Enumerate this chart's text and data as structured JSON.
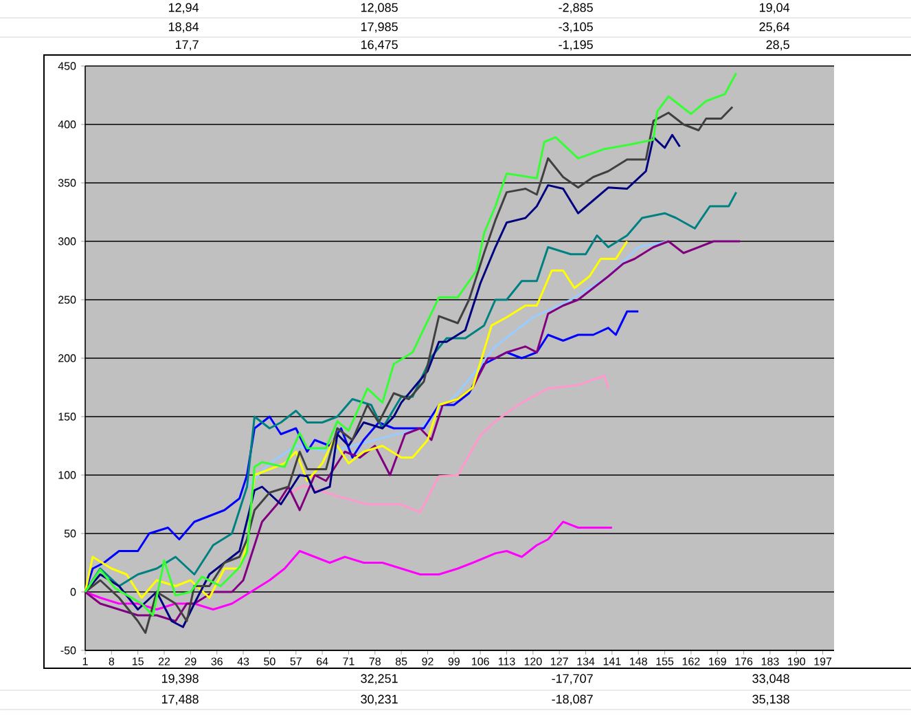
{
  "chart_data": {
    "type": "line",
    "xlim": [
      1,
      200
    ],
    "xticks": [
      1,
      8,
      15,
      22,
      29,
      36,
      43,
      50,
      57,
      64,
      71,
      78,
      85,
      92,
      99,
      106,
      113,
      120,
      127,
      134,
      141,
      148,
      155,
      162,
      169,
      176,
      183,
      190,
      197
    ],
    "ylim": [
      -50,
      450
    ],
    "yticks": [
      -50,
      0,
      50,
      100,
      150,
      200,
      250,
      300,
      350,
      400,
      450
    ],
    "grid": "y",
    "marker": "none",
    "line_style": "solid",
    "series": [
      {
        "color": "#99ccff",
        "x": [
          44,
          50,
          57,
          66,
          78,
          90,
          100,
          110,
          120,
          130,
          140,
          148,
          156
        ],
        "values": [
          90,
          110,
          125,
          120,
          130,
          140,
          170,
          210,
          235,
          250,
          270,
          295,
          300
        ]
      },
      {
        "color": "#ff00ff",
        "x": [
          1,
          5,
          10,
          15,
          20,
          25,
          30,
          35,
          40,
          45,
          50,
          54,
          58,
          62,
          66,
          70,
          75,
          80,
          85,
          90,
          95,
          100,
          104,
          110,
          113,
          117,
          121,
          124,
          128,
          132,
          136,
          141
        ],
        "values": [
          0,
          -5,
          -10,
          -10,
          -15,
          -10,
          -10,
          -15,
          -10,
          0,
          10,
          20,
          35,
          30,
          25,
          30,
          25,
          25,
          20,
          15,
          15,
          20,
          25,
          33,
          35,
          30,
          40,
          45,
          60,
          55,
          55,
          55
        ]
      },
      {
        "color": "#ff99cc",
        "x": [
          54,
          59,
          68,
          76,
          85,
          90,
          95,
          100,
          106,
          110,
          117,
          124,
          132,
          139,
          140
        ],
        "values": [
          82,
          91,
          82,
          75,
          75,
          68,
          99,
          100,
          134,
          146,
          162,
          174,
          177,
          185,
          174
        ]
      },
      {
        "color": "#0000ff",
        "x": [
          1,
          3,
          6,
          10,
          15,
          18,
          23,
          26,
          30,
          34,
          38,
          42,
          44,
          46,
          50,
          53,
          57,
          60,
          62,
          66,
          69,
          72,
          75,
          79,
          83,
          87,
          91,
          95,
          99,
          103,
          107,
          110,
          113,
          117,
          121,
          124,
          128,
          132,
          136,
          140,
          142,
          145,
          148
        ],
        "values": [
          0,
          20,
          25,
          35,
          35,
          50,
          55,
          45,
          60,
          65,
          70,
          80,
          100,
          140,
          150,
          135,
          140,
          120,
          130,
          125,
          140,
          115,
          130,
          145,
          140,
          140,
          140,
          160,
          160,
          170,
          195,
          200,
          205,
          200,
          205,
          220,
          215,
          220,
          220,
          226,
          220,
          240,
          240
        ]
      },
      {
        "color": "#800080",
        "x": [
          1,
          5,
          10,
          15,
          20,
          25,
          28,
          30,
          35,
          40,
          43,
          45,
          48,
          52,
          55,
          58,
          62,
          65,
          70,
          74,
          78,
          82,
          86,
          90,
          93,
          96,
          100,
          104,
          108,
          110,
          113,
          118,
          121,
          124,
          128,
          132,
          136,
          140,
          144,
          147,
          152,
          156,
          160,
          164,
          168,
          172,
          175
        ],
        "values": [
          0,
          -10,
          -15,
          -20,
          -20,
          -25,
          -10,
          -10,
          0,
          0,
          10,
          30,
          60,
          75,
          90,
          70,
          100,
          95,
          120,
          115,
          125,
          100,
          135,
          140,
          130,
          160,
          165,
          175,
          200,
          200,
          205,
          210,
          205,
          238,
          245,
          250,
          260,
          270,
          281,
          285,
          295,
          300,
          290,
          295,
          300,
          300,
          300
        ]
      },
      {
        "color": "#ffff00",
        "x": [
          1,
          3,
          8,
          12,
          16,
          20,
          25,
          29,
          34,
          38,
          42,
          44,
          46,
          50,
          54,
          57,
          60,
          64,
          67,
          71,
          75,
          80,
          85,
          88,
          92,
          95,
          100,
          104,
          109,
          113,
          118,
          121,
          125,
          128,
          131,
          135,
          138,
          142,
          145
        ],
        "values": [
          0,
          30,
          20,
          15,
          -5,
          10,
          5,
          10,
          -5,
          20,
          20,
          40,
          100,
          105,
          110,
          120,
          95,
          110,
          130,
          110,
          120,
          125,
          115,
          115,
          130,
          160,
          165,
          175,
          228,
          235,
          245,
          245,
          275,
          275,
          260,
          270,
          285,
          285,
          300
        ]
      },
      {
        "color": "#008080",
        "x": [
          1,
          5,
          10,
          15,
          20,
          25,
          30,
          35,
          40,
          44,
          46,
          50,
          53,
          57,
          60,
          64,
          68,
          72,
          77,
          80,
          85,
          88,
          93,
          97,
          102,
          107,
          110,
          113,
          117,
          121,
          124,
          130,
          134,
          137,
          140,
          145,
          149,
          155,
          158,
          163,
          167,
          172,
          174
        ],
        "values": [
          0,
          20,
          5,
          15,
          20,
          30,
          15,
          40,
          50,
          90,
          150,
          140,
          145,
          155,
          145,
          145,
          150,
          165,
          160,
          140,
          167,
          167,
          201,
          217,
          217,
          228,
          250,
          250,
          266,
          266,
          295,
          289,
          289,
          305,
          295,
          305,
          320,
          324,
          320,
          311,
          330,
          330,
          342
        ]
      },
      {
        "color": "#000080",
        "x": [
          1,
          5,
          10,
          15,
          20,
          24,
          27,
          30,
          34,
          38,
          42,
          46,
          48,
          53,
          58,
          60,
          62,
          66,
          68,
          71,
          75,
          80,
          83,
          85,
          92,
          95,
          97,
          102,
          106,
          110,
          113,
          118,
          121,
          124,
          128,
          132,
          136,
          140,
          145,
          150,
          152,
          155,
          157,
          159
        ],
        "values": [
          0,
          15,
          5,
          -15,
          0,
          -25,
          -30,
          -10,
          15,
          25,
          35,
          87,
          90,
          75,
          100,
          99,
          85,
          90,
          135,
          125,
          145,
          140,
          150,
          162,
          189,
          214,
          214,
          224,
          264,
          295,
          316,
          320,
          330,
          348,
          345,
          324,
          335,
          346,
          345,
          360,
          389,
          380,
          391,
          381
        ]
      },
      {
        "color": "#404040",
        "x": [
          1,
          5,
          10,
          15,
          17,
          20,
          25,
          28,
          30,
          34,
          38,
          42,
          44,
          46,
          50,
          55,
          58,
          60,
          65,
          68,
          72,
          76,
          79,
          83,
          87,
          91,
          95,
          100,
          103,
          107,
          110,
          113,
          118,
          121,
          124,
          128,
          132,
          136,
          140,
          145,
          150,
          152,
          156,
          160,
          164,
          166,
          170,
          173
        ],
        "values": [
          0,
          10,
          -5,
          -25,
          -35,
          0,
          -10,
          -25,
          5,
          5,
          25,
          30,
          45,
          70,
          85,
          90,
          120,
          105,
          105,
          140,
          130,
          160,
          145,
          170,
          165,
          180,
          236,
          230,
          250,
          290,
          318,
          342,
          345,
          340,
          371,
          355,
          346,
          355,
          360,
          370,
          370,
          403,
          410,
          400,
          395,
          405,
          405,
          415
        ]
      },
      {
        "color": "#33ff33",
        "x": [
          1,
          5,
          9,
          16,
          19,
          22,
          25,
          29,
          32,
          37,
          42,
          44,
          46,
          48,
          54,
          58,
          60,
          65,
          68,
          71,
          76,
          80,
          83,
          88,
          95,
          100,
          105,
          107,
          110,
          113,
          121,
          123,
          126,
          132,
          139,
          146,
          152,
          153,
          156,
          162,
          166,
          171,
          174
        ],
        "values": [
          0,
          19,
          3,
          -10,
          -20,
          27,
          -3,
          0,
          13,
          5,
          21,
          34,
          107,
          111,
          107,
          136,
          123,
          123,
          146,
          138,
          174,
          162,
          195,
          205,
          252,
          252,
          275,
          307,
          330,
          358,
          354,
          385,
          389,
          371,
          379,
          383,
          387,
          411,
          424,
          409,
          420,
          426,
          444
        ]
      }
    ],
    "annotations": [
      "12,94",
      "12,085",
      "-2,885",
      "19,04",
      "18,84",
      "17,985",
      "-3,105",
      "25,64",
      "17,7",
      "16,475",
      "-1,195",
      "28,5",
      "19,398",
      "32,251",
      "-17,707",
      "33,048",
      "17,488",
      "30,231",
      "-18,087",
      "35,138"
    ]
  }
}
